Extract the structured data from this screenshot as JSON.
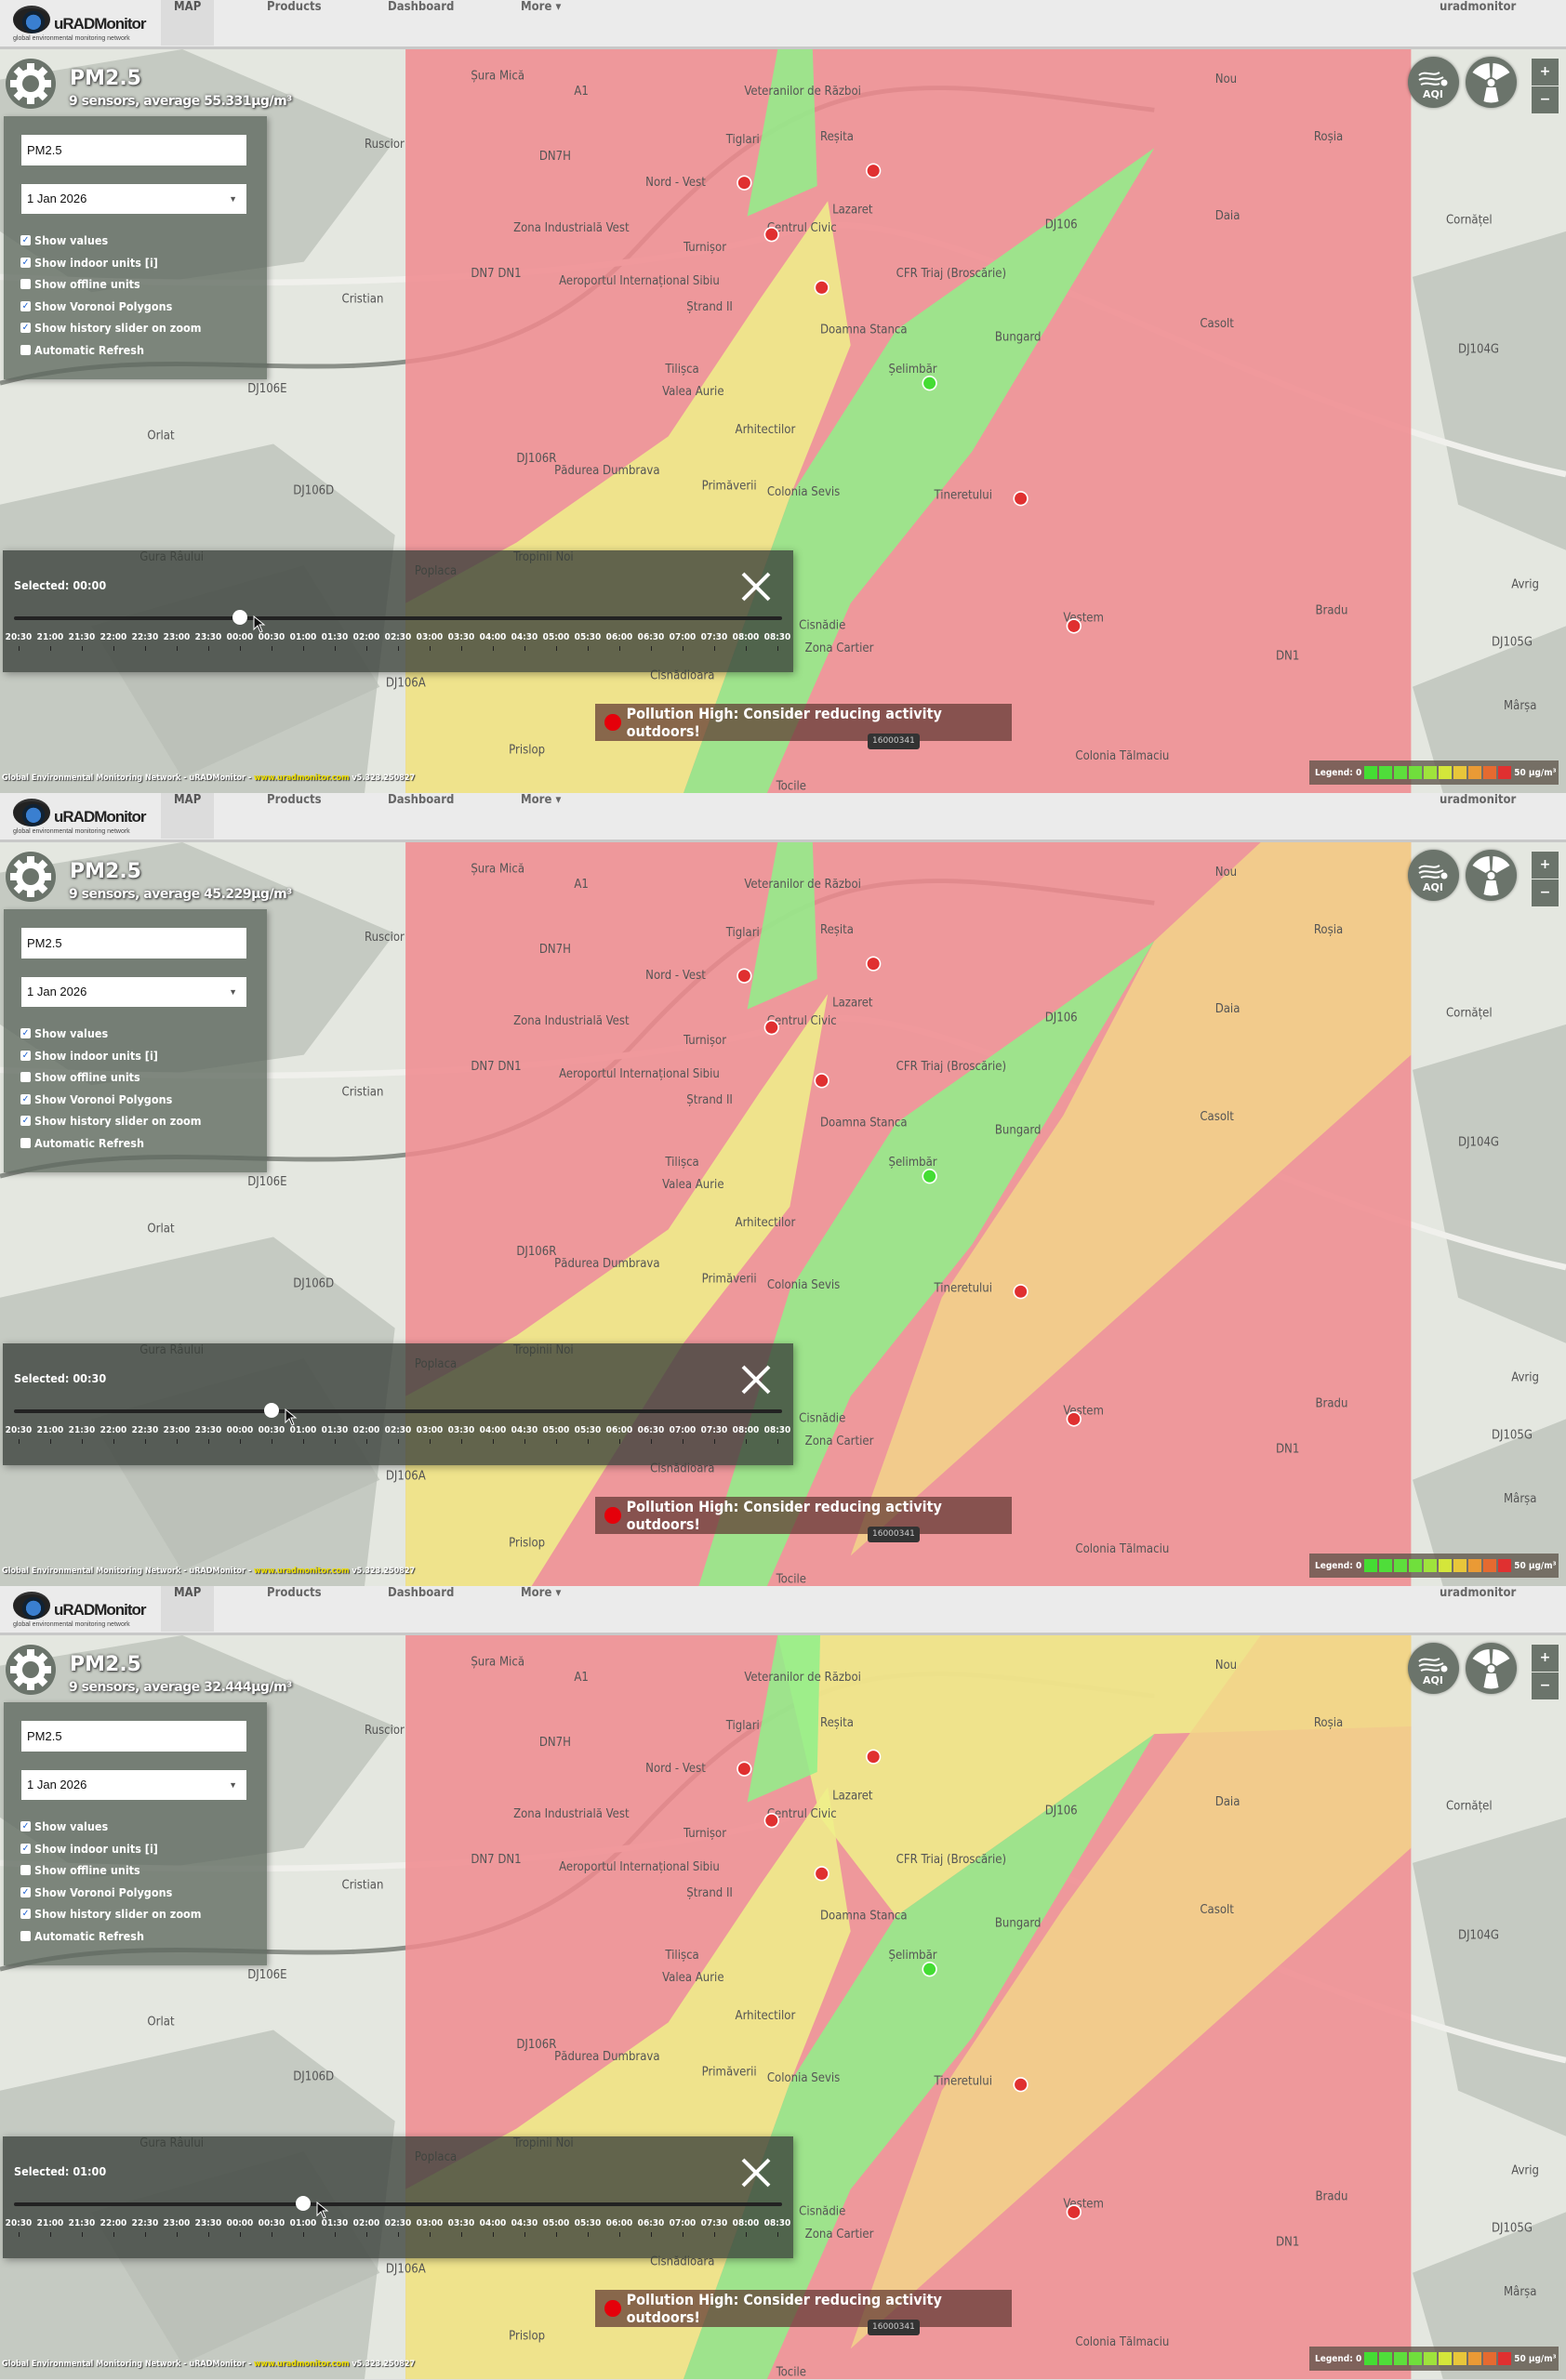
{
  "nav": {
    "logo_name": "uRADMonitor",
    "logo_tagline": "global environmental monitoring network",
    "items": [
      "MAP",
      "Products",
      "Dashboard",
      "More ▾"
    ],
    "active": "MAP",
    "user": "uradmonitor"
  },
  "overlay": {
    "title": "PM2.5",
    "sensor_input": "PM2.5",
    "date_select": "1 Jan 2026",
    "options": [
      {
        "label": "Show values",
        "checked": true
      },
      {
        "label": "Show indoor units [i]",
        "checked": true
      },
      {
        "label": "Show offline units",
        "checked": false
      },
      {
        "label": "Show Voronoi Polygons",
        "checked": true
      },
      {
        "label": "Show history slider on zoom",
        "checked": true
      },
      {
        "label": "Automatic Refresh",
        "checked": false
      }
    ]
  },
  "slider": {
    "ticks": [
      "20:30",
      "21:00",
      "21:30",
      "22:00",
      "22:30",
      "23:00",
      "23:30",
      "00:00",
      "00:30",
      "01:00",
      "01:30",
      "02:00",
      "02:30",
      "03:00",
      "03:30",
      "04:00",
      "04:30",
      "05:00",
      "05:30",
      "06:00",
      "06:30",
      "07:00",
      "07:30",
      "08:00",
      "08:30"
    ]
  },
  "alert": {
    "text": "Pollution High: Consider reducing activity outdoors!",
    "station_id": "16000341",
    "dot_color": "#e5000a"
  },
  "buttons": {
    "aqi": "AQI",
    "zoom_in": "+",
    "zoom_out": "−"
  },
  "legend": {
    "min_label": "Legend: 0",
    "max_label": "50 µg/m³",
    "colors": [
      "#44dd33",
      "#4fdd3a",
      "#5ede3c",
      "#70df3c",
      "#9fe33c",
      "#d4e63a",
      "#e8c63a",
      "#ea9a35",
      "#e56a30",
      "#e03030"
    ]
  },
  "footer": {
    "text": "Global Environmental Monitoring Network - uRADMonitor - ",
    "url": "www.uradmonitor.com",
    "version": " v5.323.250827"
  },
  "voronoi_colors": {
    "red": "#f08a8e",
    "yellow": "#eef08a",
    "green": "#8ff08a",
    "amber": "#f2d38a"
  },
  "map_labels": [
    "Șura Mică",
    "Ruscior",
    "Nord - Vest",
    "Veteranilor de Război",
    "Tiglari",
    "Reșita",
    "Lazaret",
    "Centrul Civic",
    "Turnișor",
    "CFR Triaj (Broscărie)",
    "Ștrand II",
    "Doamna Stanca",
    "Tilișca",
    "Valea Aurie",
    "Arhitectilor",
    "Primăverii",
    "Colonia Sevis",
    "Tineretului",
    "Șelimbăr",
    "Bungard",
    "Casolt",
    "Daia",
    "Roșia",
    "Nou",
    "Cornățel",
    "Cristian",
    "Orlat",
    "Gura Râului",
    "Poplaca",
    "Tropinii Noi",
    "Cisnădie",
    "Cisnădioara",
    "Prislop",
    "Tocile",
    "Vestem",
    "Bradu",
    "Avrig",
    "Mârșa",
    "Colonia Tălmaciu",
    "Zona Industrială Vest",
    "Aeroportul Internațional Sibiu",
    "Pădurea Dumbrava",
    "Zona Cartier",
    "DN7H",
    "A1",
    "DN7 DN1",
    "DJ106E",
    "DJ106R",
    "DJ106D",
    "DJ106A",
    "DJ106",
    "DJ104G",
    "DJ105G",
    "DN1"
  ],
  "panels": [
    {
      "average": "9 sensors, average 55.331µg/m³",
      "selected": "Selected: 00:00",
      "slider_value": "00:00"
    },
    {
      "average": "9 sensors, average 45.229µg/m³",
      "selected": "Selected: 00:30",
      "slider_value": "00:30"
    },
    {
      "average": "9 sensors, average 32.444µg/m³",
      "selected": "Selected: 01:00",
      "slider_value": "01:00"
    }
  ]
}
